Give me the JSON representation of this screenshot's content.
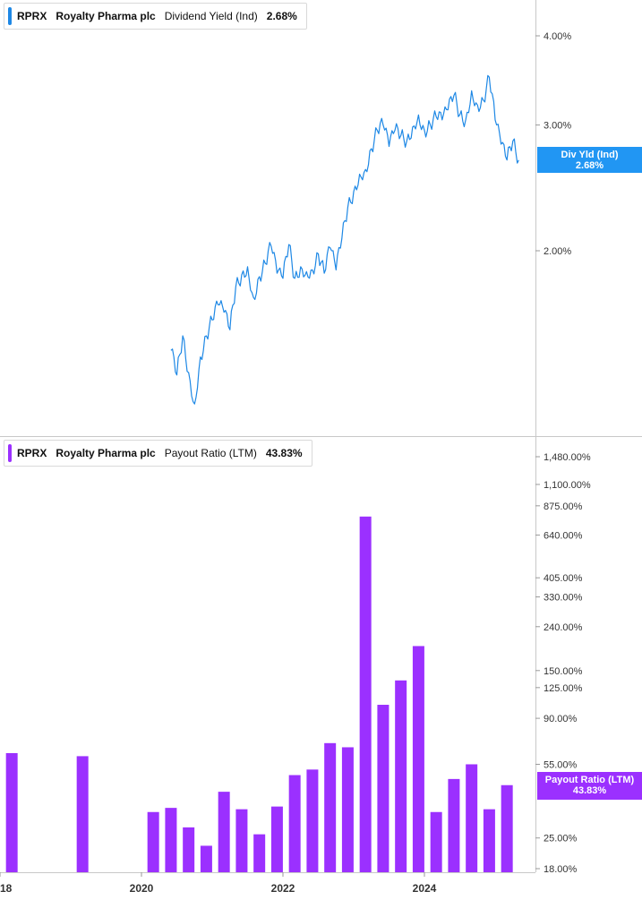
{
  "colors": {
    "yield": "#1e88e5",
    "payout": "#9b30ff",
    "grid": "#cccccc",
    "axis_text": "#333333"
  },
  "legend_top": {
    "ticker": "RPRX",
    "company": "Royalty Pharma plc",
    "metric": "Dividend Yield (Ind)",
    "value": "2.68%"
  },
  "legend_bottom": {
    "ticker": "RPRX",
    "company": "Royalty Pharma plc",
    "metric": "Payout Ratio (LTM)",
    "value": "43.83%"
  },
  "tag_top": {
    "label": "Div Yld (Ind)",
    "value": "2.68%"
  },
  "tag_bottom": {
    "label": "Payout Ratio (LTM)",
    "value": "43.83%"
  },
  "chart_data": [
    {
      "type": "line",
      "scale": "log",
      "series": [
        {
          "name": "Dividend Yield (Ind)",
          "x": [
            "2020-06",
            "2020-07",
            "2020-08",
            "2020-09",
            "2020-10",
            "2020-11",
            "2020-12",
            "2021-01",
            "2021-02",
            "2021-03",
            "2021-04",
            "2021-05",
            "2021-06",
            "2021-07",
            "2021-08",
            "2021-09",
            "2021-10",
            "2021-11",
            "2021-12",
            "2022-01",
            "2022-02",
            "2022-03",
            "2022-04",
            "2022-05",
            "2022-06",
            "2022-07",
            "2022-08",
            "2022-09",
            "2022-10",
            "2022-11",
            "2022-12",
            "2023-01",
            "2023-02",
            "2023-03",
            "2023-04",
            "2023-05",
            "2023-06",
            "2023-07",
            "2023-08",
            "2023-09",
            "2023-10",
            "2023-11",
            "2023-12",
            "2024-01",
            "2024-02",
            "2024-03",
            "2024-04",
            "2024-05",
            "2024-06",
            "2024-07",
            "2024-08",
            "2024-09",
            "2024-10",
            "2024-11",
            "2024-12",
            "2025-01",
            "2025-02",
            "2025-03",
            "2025-04",
            "2025-05"
          ],
          "values": [
            1.45,
            1.34,
            1.52,
            1.35,
            1.22,
            1.42,
            1.52,
            1.6,
            1.68,
            1.64,
            1.55,
            1.78,
            1.85,
            1.9,
            1.72,
            1.84,
            1.92,
            2.03,
            1.86,
            1.83,
            2.04,
            1.83,
            1.9,
            1.87,
            1.88,
            1.98,
            1.86,
            2.02,
            1.88,
            2.08,
            2.3,
            2.42,
            2.56,
            2.6,
            2.78,
            2.95,
            3.0,
            2.8,
            2.95,
            2.9,
            2.85,
            2.98,
            3.1,
            2.95,
            3.0,
            3.08,
            3.05,
            3.15,
            3.3,
            3.1,
            3.05,
            3.35,
            3.2,
            3.25,
            3.5,
            3.05,
            2.82,
            2.68,
            2.85,
            2.68
          ]
        }
      ],
      "y_ticks": [
        "4.00%",
        "3.00%",
        "2.00%"
      ],
      "y_tick_values": [
        4.0,
        3.0,
        2.0
      ],
      "ylim": [
        1.15,
        4.5
      ]
    },
    {
      "type": "bar",
      "scale": "log",
      "series": [
        {
          "name": "Payout Ratio (LTM)",
          "x": [
            "2018-03",
            "2019-03",
            "2020-03",
            "2020-06",
            "2020-09",
            "2020-12",
            "2021-03",
            "2021-06",
            "2021-09",
            "2021-12",
            "2022-03",
            "2022-06",
            "2022-09",
            "2022-12",
            "2023-03",
            "2023-06",
            "2023-09",
            "2023-12",
            "2024-03",
            "2024-06",
            "2024-09",
            "2024-12",
            "2025-03"
          ],
          "values": [
            62,
            60,
            33,
            34.5,
            28,
            23,
            41,
            34,
            26,
            35,
            49,
            52,
            69,
            66,
            780,
            104,
            135,
            195,
            33,
            47,
            55,
            34,
            44
          ]
        }
      ],
      "y_ticks": [
        "1,480.00%",
        "1,100.00%",
        "875.00%",
        "640.00%",
        "405.00%",
        "330.00%",
        "240.00%",
        "150.00%",
        "125.00%",
        "90.00%",
        "55.00%",
        "25.00%",
        "18.00%"
      ],
      "y_tick_values": [
        1480,
        1100,
        875,
        640,
        405,
        330,
        240,
        150,
        125,
        90,
        55,
        25,
        18
      ],
      "ylim": [
        18,
        1600
      ]
    }
  ],
  "x_axis": {
    "labels": [
      "18",
      "2020",
      "2022",
      "2024"
    ],
    "label_dates": [
      "2018-01",
      "2020-01",
      "2022-01",
      "2024-01"
    ]
  }
}
